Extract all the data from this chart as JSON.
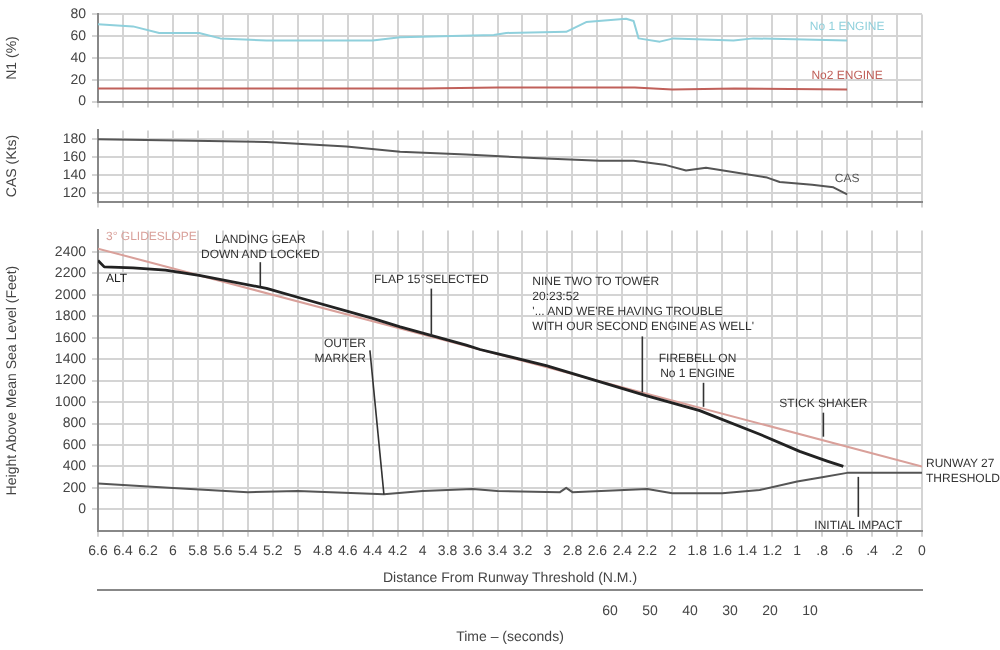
{
  "chart_data": [
    {
      "type": "line",
      "ylabel": "N1 (%)",
      "xlim": [
        6.6,
        0
      ],
      "xticks": [
        6.6,
        6.4,
        6.2,
        6,
        5.8,
        5.6,
        5.4,
        5.2,
        5,
        4.8,
        4.6,
        4.4,
        4.2,
        4,
        3.8,
        3.6,
        3.4,
        3.2,
        3,
        2.8,
        2.6,
        2.4,
        2.2,
        2,
        1.8,
        1.6,
        1.4,
        1.2,
        1,
        0.8,
        0.6,
        0.4,
        0.2,
        0
      ],
      "ylim": [
        0,
        80
      ],
      "yticks": [
        0,
        20,
        40,
        60,
        80
      ],
      "grid": true,
      "tick_labels": "y",
      "series": [
        {
          "name": "No 1 ENGINE",
          "color": "#8fd0dc",
          "x": [
            6.6,
            6.32,
            6.11,
            5.79,
            5.62,
            5.25,
            4.4,
            4.18,
            3.43,
            3.33,
            2.85,
            2.69,
            2.37,
            2.31,
            2.27,
            2.1,
            1.99,
            1.51,
            1.35,
            0.6
          ],
          "values": [
            71,
            69,
            63,
            63,
            58,
            56,
            56,
            59,
            61,
            63,
            64,
            73,
            76,
            74,
            58,
            55,
            58,
            56,
            58,
            56
          ]
        },
        {
          "name": "No2 ENGINE",
          "color": "#c0605a",
          "x": [
            6.6,
            5.0,
            4.0,
            3.4,
            2.3,
            2.0,
            1.5,
            0.6
          ],
          "values": [
            12,
            12,
            12,
            13,
            13,
            11,
            12,
            11
          ]
        }
      ]
    },
    {
      "type": "line",
      "ylabel": "CAS (Kts)",
      "xlim": [
        6.6,
        0
      ],
      "xticks": [
        6.6,
        6.4,
        6.2,
        6,
        5.8,
        5.6,
        5.4,
        5.2,
        5,
        4.8,
        4.6,
        4.4,
        4.2,
        4,
        3.8,
        3.6,
        3.4,
        3.2,
        3,
        2.8,
        2.6,
        2.4,
        2.2,
        2,
        1.8,
        1.6,
        1.4,
        1.2,
        1,
        0.8,
        0.6,
        0.4,
        0.2,
        0
      ],
      "ylim": [
        110,
        190
      ],
      "yticks": [
        120,
        140,
        160,
        180
      ],
      "grid": true,
      "tick_labels": "y",
      "series": [
        {
          "name": "CAS",
          "color": "#555555",
          "x": [
            6.6,
            5.25,
            4.61,
            4.18,
            3.65,
            3.11,
            2.58,
            2.31,
            2.05,
            1.89,
            1.73,
            1.24,
            1.14,
            0.88,
            0.71,
            0.6
          ],
          "values": [
            180,
            177,
            172,
            166,
            163,
            159,
            156,
            156,
            151,
            145,
            148,
            137,
            132,
            129,
            126,
            118
          ]
        }
      ]
    },
    {
      "type": "line",
      "ylabel": "Height Above Mean Sea Level (Feet)",
      "xlabel": "Distance From Runway Threshold (N.M.)",
      "x2label": "Time – (seconds)",
      "xlim": [
        6.6,
        0
      ],
      "xticks": [
        6.6,
        6.4,
        6.2,
        6,
        5.8,
        5.6,
        5.4,
        5.2,
        5,
        4.8,
        4.6,
        4.4,
        4.2,
        4,
        3.8,
        3.6,
        3.4,
        3.2,
        3,
        2.8,
        2.6,
        2.4,
        2.2,
        2,
        1.8,
        1.6,
        1.4,
        1.2,
        1,
        {
          "value": 0.8,
          "label": ".8"
        },
        {
          "value": 0.6,
          "label": ".6"
        },
        {
          "value": 0.4,
          "label": ".4"
        },
        {
          "value": 0.2,
          "label": ".2"
        },
        0
      ],
      "x2lim": [
        188,
        -18
      ],
      "x2ticks": [
        60,
        50,
        40,
        30,
        20,
        10
      ],
      "ylim": [
        -200,
        2600
      ],
      "yticks": [
        0,
        200,
        400,
        600,
        800,
        1000,
        1200,
        1400,
        1600,
        1800,
        2000,
        2200,
        2400
      ],
      "grid": true,
      "series": [
        {
          "name": "ALT",
          "color": "#222222",
          "x": [
            6.6,
            6.55,
            6.32,
            6.06,
            5.79,
            5.25,
            4.98,
            4.4,
            4.18,
            3.65,
            3.54,
            3.01,
            2.21,
            1.78,
            1.3,
            0.98,
            0.76,
            0.63
          ],
          "values": [
            2320,
            2260,
            2250,
            2230,
            2180,
            2060,
            1970,
            1780,
            1700,
            1530,
            1490,
            1340,
            1060,
            920,
            700,
            540,
            450,
            400
          ]
        },
        {
          "name": "3° GLIDESLOPE",
          "color": "#d9a09a",
          "x": [
            6.6,
            0
          ],
          "values": [
            2430,
            400
          ]
        },
        {
          "color": "#555555",
          "x": [
            6.6,
            6.0,
            5.4,
            5.0,
            4.31,
            4.0,
            3.6,
            3.4,
            2.9,
            2.85,
            2.8,
            2.2,
            2.0,
            1.6,
            1.3,
            1.0,
            0.8,
            0.6,
            0
          ],
          "values": [
            240,
            200,
            160,
            170,
            140,
            170,
            190,
            170,
            160,
            200,
            160,
            190,
            150,
            150,
            180,
            260,
            300,
            340,
            340
          ]
        }
      ],
      "annotations": [
        {
          "text": "LANDING GEAR\nDOWN AND LOCKED",
          "x": 5.3,
          "y": 2080
        },
        {
          "text": "FLAP 15°SELECTED",
          "x": 3.93,
          "y": 1610
        },
        {
          "text": "OUTER\nMARKER",
          "x": 4.31,
          "y": 140
        },
        {
          "text": "NINE TWO TO TOWER\n20:23:52\n'... AND WE'RE HAVING TROUBLE\nWITH OUR SECOND ENGINE AS WELL'",
          "x": 2.24,
          "y": 1090
        },
        {
          "text": "FIREBELL ON\nNo 1 ENGINE",
          "x": 1.75,
          "y": 900
        },
        {
          "text": "STICK SHAKER",
          "x": 0.79,
          "y": 640
        },
        {
          "text": "INITIAL IMPACT",
          "x": 0.51,
          "y": 340
        },
        {
          "text": "RUNWAY 27\nTHRESHOLD",
          "x": 0,
          "y": 340
        }
      ]
    }
  ]
}
